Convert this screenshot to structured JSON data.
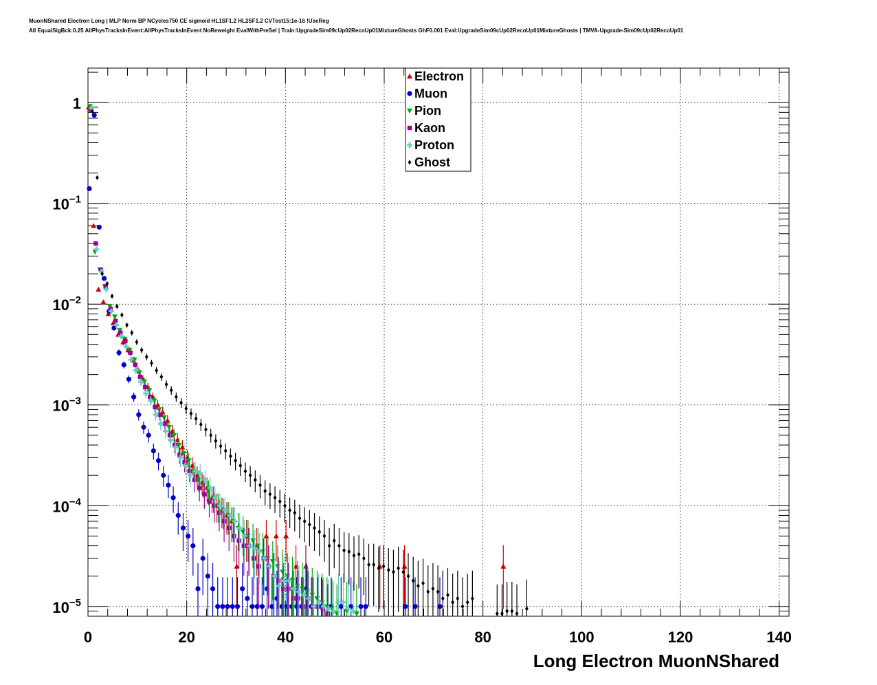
{
  "header": {
    "line1": "MuonNShared Electron Long | MLP Norm BP NCycles750 CE sigmoid HL1SF1.2 HL2SF1.2 CVTest15:1e-16 !UseReg",
    "line2": "All EqualSigBck:0.25 AllPhysTracksInEvent:AllPhysTracksInEvent NoReweight EvalWithPreSel | Train:UpgradeSim09cUp02RecoUp01MixtureGhosts GhF0.001 Eval:UpgradeSim09cUp02RecoUp01MixtureGhosts | TMVA-Upgrade-Sim09cUp02RecoUp01"
  },
  "chart_data": {
    "type": "scatter",
    "xlabel": "Long Electron MuonNShared",
    "ylabel": "",
    "xlim": [
      0,
      142
    ],
    "ylim": [
      8e-06,
      2.2
    ],
    "yscale": "log",
    "grid": true,
    "legend_position": "top-center",
    "x_ticks": [
      "0",
      "20",
      "40",
      "60",
      "80",
      "100",
      "120",
      "140"
    ],
    "y_ticks": [
      {
        "base": "1",
        "exp": ""
      },
      {
        "base": "10",
        "exp": "−1"
      },
      {
        "base": "10",
        "exp": "−2"
      },
      {
        "base": "10",
        "exp": "−3"
      },
      {
        "base": "10",
        "exp": "−4"
      },
      {
        "base": "10",
        "exp": "−5"
      }
    ],
    "series": [
      {
        "name": "Electron",
        "color": "#cc0000",
        "marker": "triangle-up",
        "x": [
          0,
          1,
          2,
          3,
          4,
          5,
          6,
          7,
          8,
          9,
          10,
          11,
          12,
          13,
          14,
          15,
          16,
          17,
          18,
          19,
          20,
          21,
          22,
          23,
          24,
          25,
          26,
          27,
          28,
          29,
          30,
          32,
          34,
          36,
          38,
          40,
          42,
          44,
          59,
          64,
          84
        ],
        "y": [
          0.9,
          0.06,
          0.014,
          0.0105,
          0.008,
          0.0065,
          0.005,
          0.0042,
          0.0035,
          0.0028,
          0.0022,
          0.0018,
          0.0015,
          0.0012,
          0.001,
          0.00085,
          0.0007,
          0.00055,
          0.00045,
          0.00038,
          0.0003,
          0.00025,
          0.0002,
          0.00017,
          0.00015,
          0.00012,
          0.0001,
          9e-05,
          8e-05,
          7e-05,
          2.5e-05,
          5e-05,
          4e-05,
          5e-05,
          5e-05,
          5e-05,
          2.5e-05,
          2.5e-05,
          2.5e-05,
          2.5e-05,
          2.5e-05
        ]
      },
      {
        "name": "Muon",
        "color": "#0000cc",
        "marker": "circle",
        "x": [
          0,
          1,
          2,
          3,
          4,
          5,
          6,
          7,
          8,
          9,
          10,
          11,
          12,
          13,
          14,
          15,
          16,
          17,
          18,
          19,
          20,
          21,
          22,
          23,
          24,
          25,
          26,
          27,
          28,
          29,
          30,
          31,
          32,
          33,
          34,
          35,
          36,
          37,
          38,
          39,
          40,
          41,
          42,
          43,
          44,
          45,
          47,
          49,
          51,
          53,
          55,
          56,
          64,
          66,
          71
        ],
        "y": [
          0.14,
          0.75,
          0.058,
          0.018,
          0.0085,
          0.0058,
          0.0033,
          0.0025,
          0.0018,
          0.0012,
          0.0008,
          0.0006,
          0.0005,
          0.00035,
          0.00028,
          0.0002,
          0.00016,
          0.00012,
          8e-05,
          6e-05,
          5e-05,
          4e-05,
          1.5e-05,
          3e-05,
          2e-05,
          1.5e-05,
          1e-05,
          1e-05,
          1e-05,
          1e-05,
          1e-05,
          1.5e-05,
          1.2e-05,
          1e-05,
          1e-05,
          1e-05,
          1.5e-05,
          1e-05,
          1.2e-05,
          1e-05,
          1e-05,
          1e-05,
          1e-05,
          1e-05,
          1.5e-05,
          1e-05,
          1e-05,
          1e-05,
          1e-05,
          1e-05,
          1e-05,
          1e-05,
          1e-05,
          1e-05,
          1e-05
        ]
      },
      {
        "name": "Pion",
        "color": "#00aa00",
        "marker": "triangle-down",
        "x": [
          0,
          1,
          2,
          3,
          4,
          5,
          6,
          7,
          8,
          9,
          10,
          11,
          12,
          13,
          14,
          15,
          16,
          17,
          18,
          19,
          20,
          21,
          22,
          23,
          24,
          25,
          26,
          27,
          28,
          29,
          30,
          31,
          32,
          33,
          34,
          35,
          36,
          37,
          38,
          39,
          40,
          41,
          42,
          43,
          44,
          45,
          46,
          47,
          48,
          49,
          50,
          52,
          54
        ],
        "y": [
          0.92,
          0.033,
          0.022,
          0.015,
          0.0095,
          0.0075,
          0.0055,
          0.0045,
          0.0035,
          0.0028,
          0.0021,
          0.0017,
          0.0014,
          0.0011,
          0.0009,
          0.00075,
          0.0006,
          0.0005,
          0.0004,
          0.00033,
          0.00028,
          0.00022,
          0.00018,
          0.00016,
          0.00014,
          0.00012,
          0.0001,
          8.8e-05,
          8e-05,
          7e-05,
          6e-05,
          5.5e-05,
          5e-05,
          4.5e-05,
          4e-05,
          3.5e-05,
          3e-05,
          2.8e-05,
          2.5e-05,
          2.2e-05,
          2e-05,
          1.8e-05,
          1.6e-05,
          1.5e-05,
          1.4e-05,
          1.3e-05,
          1.2e-05,
          1.1e-05,
          1e-05,
          9.5e-06,
          8.5e-06,
          9e-06,
          8.5e-06
        ]
      },
      {
        "name": "Kaon",
        "color": "#990099",
        "marker": "square",
        "x": [
          0,
          1,
          2,
          3,
          4,
          5,
          6,
          7,
          8,
          9,
          10,
          11,
          12,
          13,
          14,
          15,
          16,
          17,
          18,
          19,
          20,
          21,
          22,
          23,
          24,
          25,
          26,
          27,
          28,
          29,
          30,
          31,
          32,
          33,
          34,
          35,
          36,
          37,
          38,
          39,
          40,
          41,
          42,
          43,
          44,
          45,
          46,
          47,
          48
        ],
        "y": [
          0.85,
          0.04,
          0.022,
          0.015,
          0.009,
          0.0068,
          0.0052,
          0.0043,
          0.0033,
          0.0025,
          0.0019,
          0.0015,
          0.0012,
          0.00095,
          0.0008,
          0.00065,
          0.0005,
          0.0004,
          0.00032,
          0.00027,
          0.00022,
          0.00018,
          0.00015,
          0.00013,
          0.00011,
          0.0001,
          8.5e-05,
          7e-05,
          6e-05,
          5e-05,
          4.5e-05,
          4e-05,
          4e-05,
          3e-05,
          2.5e-05,
          3e-05,
          2.5e-05,
          2e-05,
          1.8e-05,
          1.5e-05,
          1.5e-05,
          1.2e-05,
          1.2e-05,
          1e-05,
          1.2e-05,
          1e-05,
          1e-05,
          9.5e-06,
          8.5e-06
        ]
      },
      {
        "name": "Proton",
        "color": "#66cccc",
        "marker": "plus",
        "x": [
          0,
          1,
          2,
          3,
          4,
          5,
          6,
          7,
          8,
          9,
          10,
          11,
          12,
          13,
          14,
          15,
          16,
          17,
          18,
          19,
          20,
          21,
          22,
          23,
          24,
          25,
          26,
          27,
          28,
          29,
          30,
          31,
          32,
          33,
          34,
          35,
          36,
          37,
          38,
          39,
          40,
          41,
          42,
          43,
          44,
          45,
          46,
          47,
          48,
          49,
          50,
          51,
          52,
          53
        ],
        "y": [
          0.88,
          0.035,
          0.021,
          0.014,
          0.0085,
          0.0062,
          0.0048,
          0.0038,
          0.0028,
          0.0022,
          0.0017,
          0.0013,
          0.0011,
          0.0008,
          0.00065,
          0.00055,
          0.00045,
          0.00038,
          0.0003,
          0.00025,
          0.0002,
          0.00022,
          0.00021,
          0.00018,
          0.00015,
          0.00012,
          0.0001,
          9e-05,
          8e-05,
          7e-05,
          6e-05,
          5e-05,
          4e-05,
          3.8e-05,
          3.5e-05,
          3e-05,
          2.5e-05,
          2e-05,
          1.6e-05,
          1.8e-05,
          1.8e-05,
          1.5e-05,
          1.4e-05,
          1.3e-05,
          1.2e-05,
          1e-05,
          1.1e-05,
          1e-05,
          9.5e-06,
          9e-06,
          1.1e-05,
          1.1e-05,
          9.5e-06,
          9e-06
        ]
      },
      {
        "name": "Ghost",
        "color": "#000000",
        "marker": "diamond",
        "x": [
          0,
          1,
          2,
          3,
          4,
          5,
          6,
          7,
          8,
          9,
          10,
          11,
          12,
          13,
          14,
          15,
          16,
          17,
          18,
          19,
          20,
          21,
          22,
          23,
          24,
          25,
          26,
          27,
          28,
          29,
          30,
          31,
          32,
          33,
          34,
          35,
          36,
          37,
          38,
          39,
          40,
          41,
          42,
          43,
          44,
          45,
          46,
          47,
          48,
          49,
          50,
          51,
          52,
          53,
          54,
          55,
          56,
          57,
          58,
          59,
          60,
          61,
          62,
          63,
          64,
          65,
          66,
          67,
          68,
          69,
          70,
          71,
          72,
          73,
          74,
          75,
          76,
          77,
          82,
          83,
          84,
          85,
          86,
          88
        ],
        "y": [
          0.82,
          0.18,
          0.02,
          0.016,
          0.012,
          0.0095,
          0.0078,
          0.0062,
          0.0052,
          0.0042,
          0.0035,
          0.003,
          0.0026,
          0.0022,
          0.0019,
          0.0016,
          0.0014,
          0.0012,
          0.00105,
          0.00092,
          0.00082,
          0.00073,
          0.00064,
          0.00057,
          0.0005,
          0.00044,
          0.00039,
          0.00035,
          0.00031,
          0.00028,
          0.00025,
          0.00022,
          0.0002,
          0.00018,
          0.00016,
          0.00014,
          0.00013,
          0.00012,
          0.00011,
          0.0001,
          9e-05,
          8.5e-05,
          7.5e-05,
          7e-05,
          6.5e-05,
          6e-05,
          5.5e-05,
          5e-05,
          4e-05,
          4.5e-05,
          4e-05,
          3.6e-05,
          3.5e-05,
          3.2e-05,
          3.3e-05,
          3e-05,
          2.6e-05,
          2.6e-05,
          2.4e-05,
          2.5e-05,
          2.3e-05,
          2.2e-05,
          2.4e-05,
          2.2e-05,
          2e-05,
          1.8e-05,
          1.6e-05,
          1.7e-05,
          1.4e-05,
          1.5e-05,
          1.4e-05,
          1.2e-05,
          1.3e-05,
          1.1e-05,
          1.2e-05,
          1e-05,
          1.1e-05,
          1.2e-05,
          8.5e-06,
          8.5e-06,
          9e-06,
          9e-06,
          8.5e-06,
          9.5e-06
        ]
      }
    ]
  }
}
